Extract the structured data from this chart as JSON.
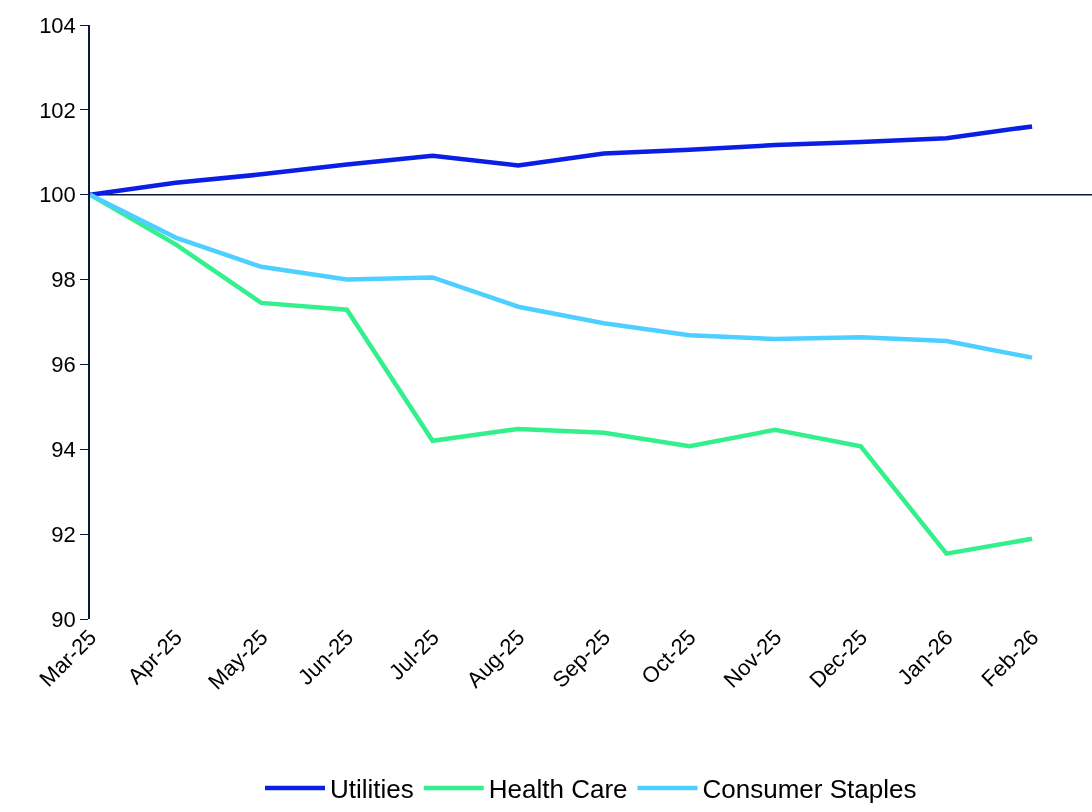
{
  "chart_data": {
    "type": "line",
    "categories": [
      "Mar-25",
      "Apr-25",
      "May-25",
      "Jun-25",
      "Jul-25",
      "Aug-25",
      "Sep-25",
      "Oct-25",
      "Nov-25",
      "Dec-25",
      "Jan-26",
      "Feb-26"
    ],
    "series": [
      {
        "name": "Utilities",
        "color": "#0a1ee6",
        "values": [
          100,
          100.28,
          100.48,
          100.71,
          100.92,
          100.69,
          100.97,
          101.06,
          101.17,
          101.24,
          101.33,
          101.61
        ]
      },
      {
        "name": "Health Care",
        "color": "#33f08c",
        "values": [
          100,
          98.83,
          97.45,
          97.29,
          94.2,
          94.48,
          94.39,
          94.07,
          94.46,
          94.07,
          91.54,
          91.89
        ]
      },
      {
        "name": "Consumer Staples",
        "color": "#4dcfff",
        "values": [
          100,
          98.99,
          98.3,
          98.0,
          98.05,
          97.36,
          96.97,
          96.69,
          96.6,
          96.64,
          96.55,
          96.16
        ]
      }
    ],
    "ylim": [
      90,
      104
    ],
    "yticks": [
      90,
      92,
      94,
      96,
      98,
      100,
      102,
      104
    ],
    "ref_lines": [
      {
        "axis": "y",
        "value": 100,
        "color": "#0a1a3a"
      }
    ],
    "grid": false,
    "legend": "bottom",
    "marker": "none",
    "line_style": "solid"
  }
}
